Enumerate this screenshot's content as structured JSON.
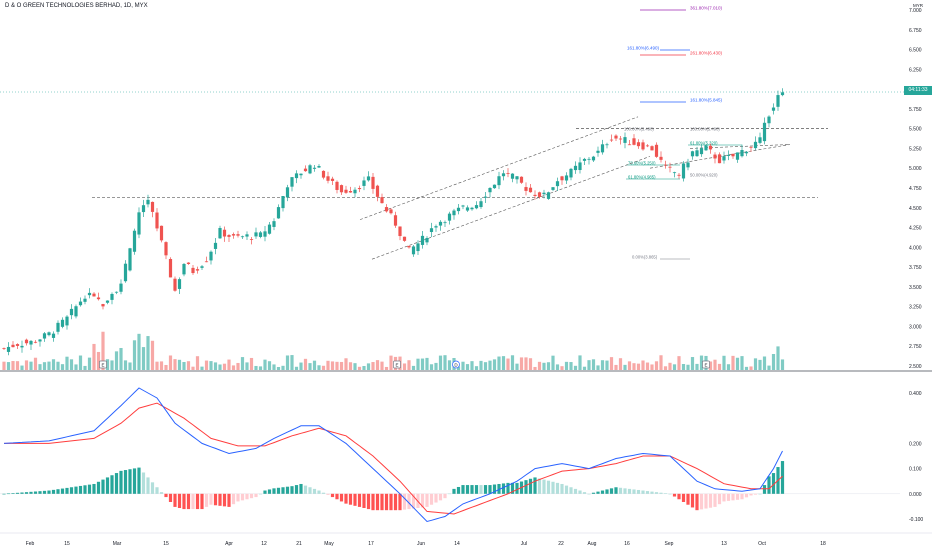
{
  "header": {
    "symbol_title": "D & O GREEN TECHNOLOGIES BERHAD, 1D, MYX",
    "currency": "MYR"
  },
  "price_label": "6.00",
  "price_tag_text": "04:11:33",
  "colors": {
    "up": "#26a69a",
    "down": "#ef5350",
    "vol_up": "#80cbc4",
    "vol_down": "#f7a8a6",
    "macd_line": "#2962ff",
    "signal_line": "#ff3d3d",
    "hist_up_strong": "#26a69a",
    "hist_up_weak": "#b2dfdb",
    "hist_down_strong": "#ff5252",
    "hist_down_weak": "#ffcdd2",
    "channel": "#555555",
    "fib_blue": "#2962ff",
    "fib_red": "#f23645",
    "fib_green": "#089981",
    "fib_purple": "#9c27b0",
    "fib_gray": "#787b86"
  },
  "chart_data": [
    {
      "type": "candlestick",
      "title": "D & O GREEN TECHNOLOGIES BERHAD, 1D, MYX",
      "y_ticks": [
        "7.000",
        "6.750",
        "6.500",
        "6.250",
        "6.000",
        "5.750",
        "5.500",
        "5.250",
        "5.000",
        "4.750",
        "4.500",
        "4.250",
        "4.000",
        "3.750",
        "3.500",
        "3.250",
        "3.000",
        "2.750",
        "2.500"
      ],
      "ylim": [
        2.5,
        7.0
      ],
      "x_ticks": [
        "Feb",
        "15",
        "Mar",
        "15",
        "Apr",
        "12",
        "21",
        "May",
        "17",
        "Jun",
        "14",
        "Jul",
        "22",
        "Aug",
        "16",
        "Sep",
        "13",
        "Oct",
        "18"
      ],
      "series": [
        {
          "name": "Price",
          "close_path": [
            [
              0,
              2.72
            ],
            [
              3,
              2.78
            ],
            [
              6,
              2.8
            ],
            [
              10,
              2.9
            ],
            [
              14,
              3.1
            ],
            [
              18,
              3.4
            ],
            [
              22,
              3.3
            ],
            [
              26,
              3.55
            ],
            [
              28,
              3.95
            ],
            [
              30,
              4.45
            ],
            [
              32,
              4.58
            ],
            [
              34,
              4.25
            ],
            [
              36,
              3.85
            ],
            [
              38,
              3.45
            ],
            [
              40,
              3.8
            ],
            [
              42,
              3.7
            ],
            [
              45,
              3.85
            ],
            [
              48,
              4.2
            ],
            [
              51,
              4.12
            ],
            [
              54,
              4.14
            ],
            [
              57,
              4.15
            ],
            [
              60,
              4.35
            ],
            [
              63,
              4.8
            ],
            [
              66,
              4.95
            ],
            [
              69,
              5.05
            ],
            [
              72,
              4.85
            ],
            [
              75,
              4.7
            ],
            [
              78,
              4.75
            ],
            [
              81,
              4.85
            ],
            [
              84,
              4.55
            ],
            [
              87,
              4.3
            ],
            [
              90,
              3.95
            ],
            [
              93,
              4.1
            ],
            [
              96,
              4.3
            ],
            [
              99,
              4.4
            ],
            [
              102,
              4.5
            ],
            [
              105,
              4.55
            ],
            [
              108,
              4.75
            ],
            [
              111,
              4.95
            ],
            [
              114,
              4.85
            ],
            [
              117,
              4.7
            ],
            [
              120,
              4.65
            ],
            [
              123,
              4.85
            ],
            [
              126,
              4.95
            ],
            [
              129,
              5.1
            ],
            [
              132,
              5.2
            ],
            [
              135,
              5.4
            ],
            [
              138,
              5.35
            ],
            [
              141,
              5.3
            ],
            [
              144,
              5.25
            ],
            [
              147,
              5.0
            ],
            [
              150,
              4.92
            ],
            [
              153,
              5.2
            ],
            [
              156,
              5.25
            ],
            [
              159,
              5.1
            ],
            [
              162,
              5.15
            ],
            [
              165,
              5.25
            ],
            [
              168,
              5.35
            ],
            [
              170,
              5.7
            ],
            [
              172,
              5.9
            ],
            [
              173,
              6.0
            ]
          ]
        }
      ],
      "volume_events": [
        "E",
        "E",
        "D",
        "E"
      ],
      "annotations": {
        "fib_upper": [
          {
            "label": "361.80%(7.010)",
            "color_key": "fib_purple"
          },
          {
            "label": "161.80%(6.490)",
            "color_key": "fib_blue"
          },
          {
            "label": "261.80%(6.430)",
            "color_key": "fib_red"
          },
          {
            "label": "161.80%(5.845)",
            "color_key": "fib_blue"
          }
        ],
        "fib_lower": [
          {
            "label": "100.00%(5.490)",
            "color_key": "fib_gray"
          },
          {
            "label": "100.00%(5.490)",
            "color_key": "fib_gray"
          },
          {
            "label": "61.80%(5.320)",
            "color_key": "fib_green"
          },
          {
            "label": "78.60%(5.250)",
            "color_key": "fib_green"
          },
          {
            "label": "61.80%(4.985)",
            "color_key": "fib_green"
          },
          {
            "label": "50.00%(4.920)",
            "color_key": "fib_gray"
          },
          {
            "label": "0.00%(3.865)",
            "color_key": "fib_gray"
          }
        ]
      }
    },
    {
      "type": "line",
      "title": "MACD",
      "y_ticks": [
        "0.400",
        "0.200",
        "0.100",
        "0.000",
        "-0.100"
      ],
      "ylim": [
        -0.13,
        0.43
      ],
      "series": [
        {
          "name": "",
          "values_path": [
            [
              0,
              0.2
            ],
            [
              10,
              0.21
            ],
            [
              20,
              0.25
            ],
            [
              26,
              0.35
            ],
            [
              30,
              0.42
            ],
            [
              34,
              0.38
            ],
            [
              38,
              0.28
            ],
            [
              44,
              0.2
            ],
            [
              50,
              0.16
            ],
            [
              56,
              0.18
            ],
            [
              60,
              0.22
            ],
            [
              66,
              0.27
            ],
            [
              70,
              0.27
            ],
            [
              76,
              0.2
            ],
            [
              82,
              0.1
            ],
            [
              88,
              0.0
            ],
            [
              94,
              -0.11
            ],
            [
              98,
              -0.09
            ],
            [
              102,
              -0.04
            ],
            [
              108,
              0.0
            ],
            [
              114,
              0.05
            ],
            [
              118,
              0.1
            ],
            [
              124,
              0.12
            ],
            [
              130,
              0.1
            ],
            [
              136,
              0.14
            ],
            [
              142,
              0.16
            ],
            [
              148,
              0.15
            ],
            [
              154,
              0.05
            ],
            [
              158,
              0.02
            ],
            [
              164,
              0.01
            ],
            [
              168,
              0.02
            ],
            [
              171,
              0.1
            ],
            [
              173,
              0.17
            ]
          ]
        },
        {
          "name": "",
          "values_path": [
            [
              0,
              0.2
            ],
            [
              10,
              0.2
            ],
            [
              20,
              0.22
            ],
            [
              26,
              0.28
            ],
            [
              30,
              0.34
            ],
            [
              34,
              0.36
            ],
            [
              40,
              0.3
            ],
            [
              46,
              0.22
            ],
            [
              52,
              0.19
            ],
            [
              58,
              0.19
            ],
            [
              64,
              0.23
            ],
            [
              70,
              0.26
            ],
            [
              76,
              0.23
            ],
            [
              82,
              0.15
            ],
            [
              88,
              0.05
            ],
            [
              94,
              -0.07
            ],
            [
              100,
              -0.08
            ],
            [
              106,
              -0.04
            ],
            [
              112,
              0.0
            ],
            [
              118,
              0.05
            ],
            [
              124,
              0.09
            ],
            [
              130,
              0.1
            ],
            [
              136,
              0.12
            ],
            [
              142,
              0.15
            ],
            [
              148,
              0.15
            ],
            [
              154,
              0.1
            ],
            [
              160,
              0.04
            ],
            [
              166,
              0.02
            ],
            [
              170,
              0.02
            ],
            [
              173,
              0.07
            ]
          ]
        }
      ]
    }
  ]
}
